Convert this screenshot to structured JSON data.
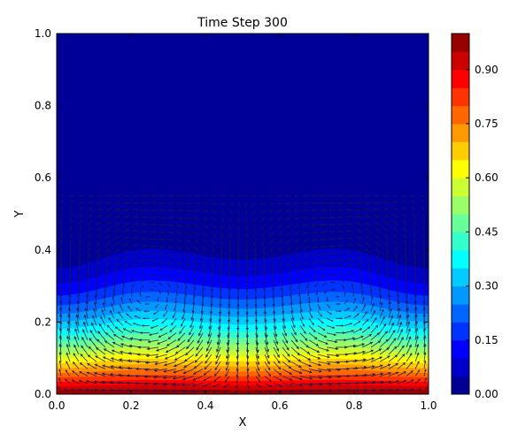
{
  "chart_data": {
    "type": "heatmap",
    "subtype": "filled-contour-with-quiver",
    "title": "Time Step 300",
    "xlabel": "X",
    "ylabel": "Y",
    "xlim": [
      0.0,
      1.0
    ],
    "ylim": [
      0.0,
      1.0
    ],
    "x_ticks": [
      "0.0",
      "0.2",
      "0.4",
      "0.6",
      "0.8",
      "1.0"
    ],
    "y_ticks": [
      "0.0",
      "0.2",
      "0.4",
      "0.6",
      "0.8",
      "1.0"
    ],
    "grid": false,
    "colormap": "jet",
    "colorbar": {
      "placement": "right",
      "range": [
        0.0,
        1.0
      ],
      "levels": 20,
      "ticks": [
        "0.00",
        "0.15",
        "0.30",
        "0.45",
        "0.60",
        "0.75",
        "0.90"
      ]
    },
    "field": {
      "description": "concentration field, highest at y=0, decaying upward; two convection cells centered near x=0.25 and x=0.75",
      "front_y_at_x": [
        {
          "x": 0.0,
          "y": 0.46
        },
        {
          "x": 0.25,
          "y": 0.53
        },
        {
          "x": 0.5,
          "y": 0.49
        },
        {
          "x": 0.75,
          "y": 0.53
        },
        {
          "x": 1.0,
          "y": 0.46
        }
      ]
    },
    "vectors": {
      "cells": [
        {
          "center_x": 0.25,
          "center_y": 0.2,
          "rotation": "clockwise"
        },
        {
          "center_x": 0.75,
          "center_y": 0.2,
          "rotation": "counterclockwise"
        }
      ],
      "arrow_color": "#1a1a4d"
    }
  }
}
